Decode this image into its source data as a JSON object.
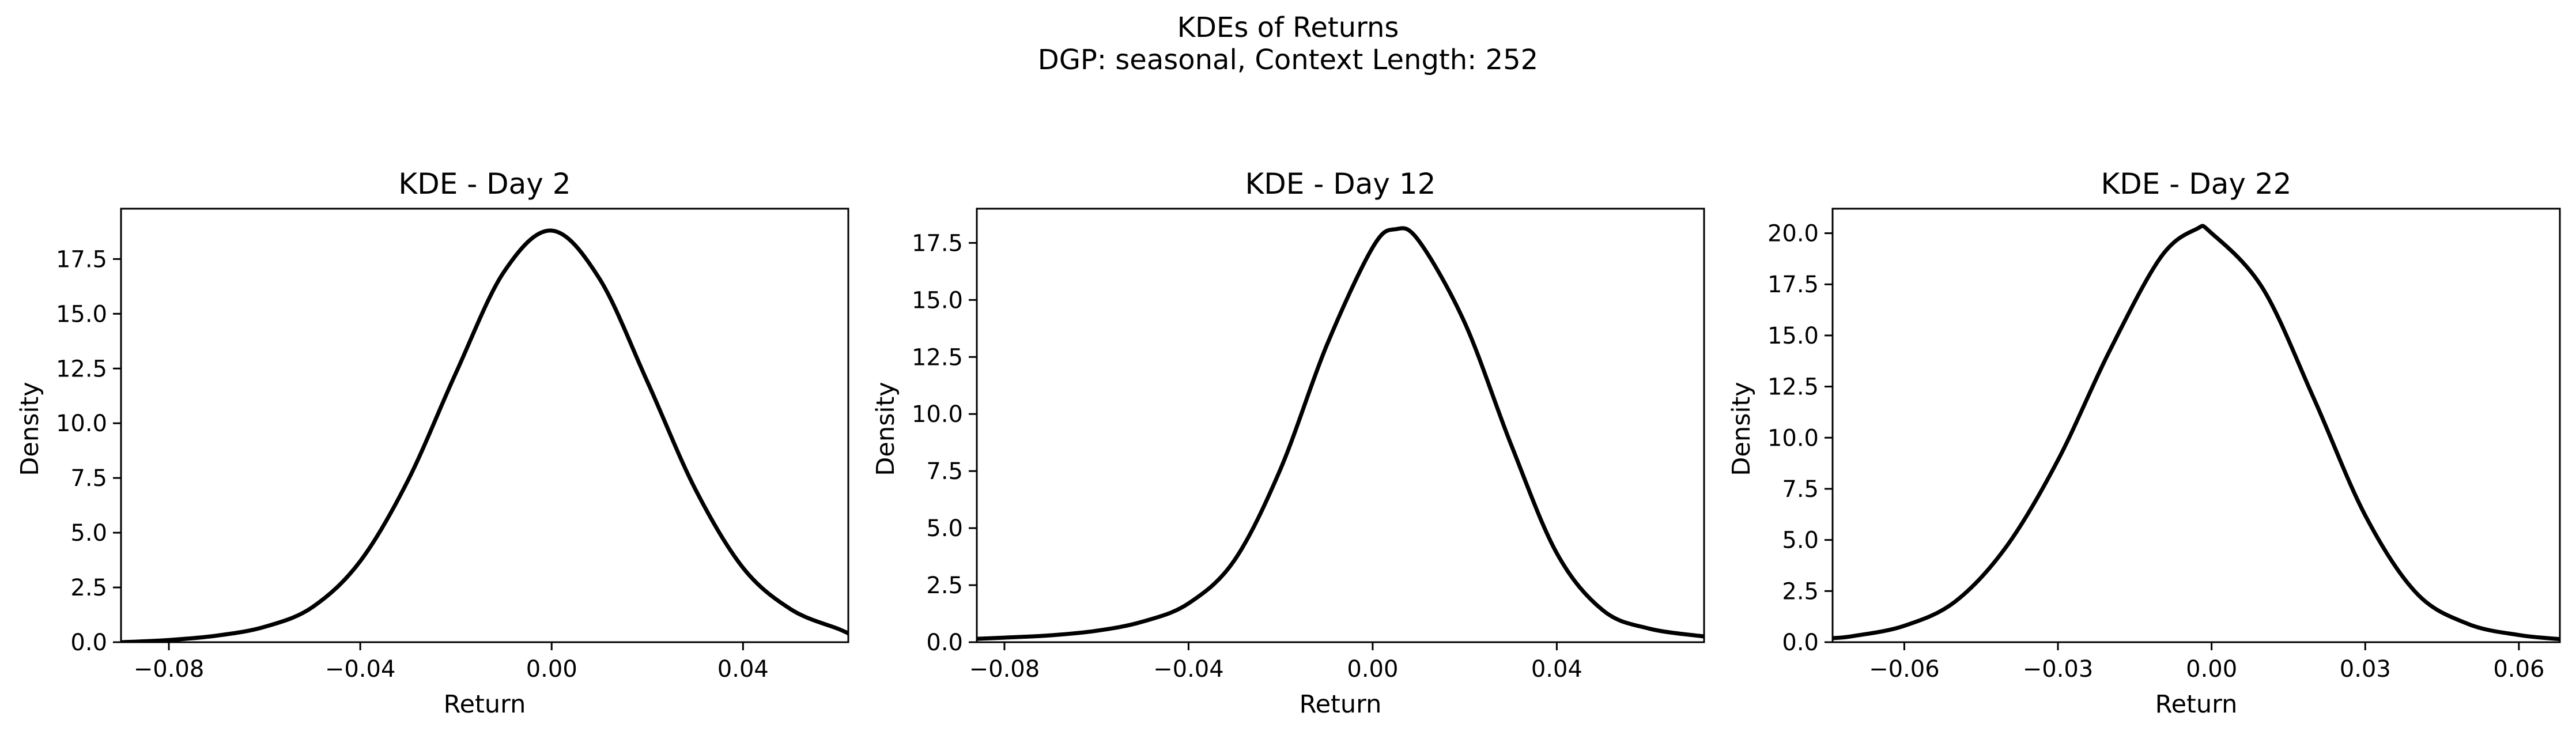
{
  "figure": {
    "title_line1": "KDEs of Returns",
    "title_line2": "DGP: seasonal, Context Length: 252"
  },
  "chart_data": [
    {
      "type": "line",
      "title": "KDE - Day 2",
      "xlabel": "Return",
      "ylabel": "Density",
      "xlim": [
        -0.09,
        0.062
      ],
      "ylim": [
        0,
        19.8
      ],
      "xticks": [
        -0.08,
        -0.04,
        0.0,
        0.04
      ],
      "xtick_labels": [
        "−0.08",
        "−0.04",
        "0.00",
        "0.04"
      ],
      "yticks": [
        0,
        2.5,
        5,
        7.5,
        10,
        12.5,
        15,
        17.5
      ],
      "ytick_labels": [
        "0.0",
        "2.5",
        "5.0",
        "7.5",
        "10.0",
        "12.5",
        "15.0",
        "17.5"
      ],
      "grid": false,
      "color": "#000000",
      "x": [
        -0.09,
        -0.08,
        -0.07,
        -0.06,
        -0.05,
        -0.04,
        -0.03,
        -0.02,
        -0.01,
        0.0,
        0.01,
        0.02,
        0.03,
        0.04,
        0.05,
        0.06,
        0.062
      ],
      "y": [
        0.0,
        0.1,
        0.3,
        0.7,
        1.6,
        3.7,
        7.4,
        12.3,
        16.9,
        18.8,
        16.6,
        11.9,
        7.0,
        3.4,
        1.5,
        0.6,
        0.4
      ]
    },
    {
      "type": "line",
      "title": "KDE - Day 12",
      "xlabel": "Return",
      "ylabel": "Density",
      "xlim": [
        -0.086,
        0.072
      ],
      "ylim": [
        0,
        19.0
      ],
      "xticks": [
        -0.08,
        -0.04,
        0.0,
        0.04
      ],
      "xtick_labels": [
        "−0.08",
        "−0.04",
        "0.00",
        "0.04"
      ],
      "yticks": [
        0,
        2.5,
        5,
        7.5,
        10,
        12.5,
        15,
        17.5
      ],
      "ytick_labels": [
        "0.0",
        "2.5",
        "5.0",
        "7.5",
        "10.0",
        "12.5",
        "15.0",
        "17.5"
      ],
      "grid": false,
      "color": "#000000",
      "x": [
        -0.086,
        -0.08,
        -0.07,
        -0.06,
        -0.05,
        -0.04,
        -0.03,
        -0.02,
        -0.01,
        0.0,
        0.005,
        0.01,
        0.02,
        0.03,
        0.04,
        0.05,
        0.06,
        0.072
      ],
      "y": [
        0.15,
        0.2,
        0.3,
        0.5,
        0.9,
        1.7,
        3.6,
        7.6,
        13.0,
        17.3,
        18.1,
        17.6,
        14.0,
        8.7,
        3.9,
        1.4,
        0.6,
        0.25
      ]
    },
    {
      "type": "line",
      "title": "KDE - Day 22",
      "xlabel": "Return",
      "ylabel": "Density",
      "xlim": [
        -0.074,
        0.068
      ],
      "ylim": [
        0,
        21.2
      ],
      "xticks": [
        -0.06,
        -0.03,
        0.0,
        0.03,
        0.06
      ],
      "xtick_labels": [
        "−0.06",
        "−0.03",
        "0.00",
        "0.03",
        "0.06"
      ],
      "yticks": [
        0,
        2.5,
        5,
        7.5,
        10,
        12.5,
        15,
        17.5,
        20
      ],
      "ytick_labels": [
        "0.0",
        "2.5",
        "5.0",
        "7.5",
        "10.0",
        "12.5",
        "15.0",
        "17.5",
        "20.0"
      ],
      "grid": false,
      "color": "#000000",
      "x": [
        -0.074,
        -0.07,
        -0.06,
        -0.05,
        -0.04,
        -0.03,
        -0.02,
        -0.01,
        -0.003,
        0.0,
        0.01,
        0.02,
        0.03,
        0.04,
        0.05,
        0.06,
        0.068
      ],
      "y": [
        0.2,
        0.3,
        0.8,
        2.0,
        4.7,
        8.9,
        14.2,
        18.8,
        20.2,
        20.0,
        17.3,
        11.9,
        6.2,
        2.4,
        0.9,
        0.35,
        0.15
      ]
    }
  ]
}
